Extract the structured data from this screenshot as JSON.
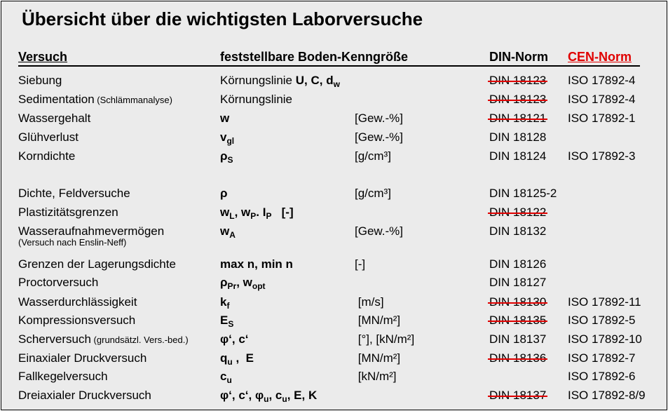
{
  "title": "Übersicht über die wichtigsten Laborversuche",
  "headers": {
    "versuch": "Versuch",
    "kenngroesse": "feststellbare  Boden-Kenngröße",
    "din": "DIN-Norm",
    "cen": "CEN-Norm"
  },
  "colors": {
    "cen_header": "#e00000",
    "strike": "#e00000",
    "background": "#ebebeb"
  },
  "rows": [
    {
      "versuch": "Siebung",
      "param": [
        [
          "Körnungslinie ",
          ""
        ],
        [
          "U, C, d",
          "b"
        ],
        [
          "w",
          "bs"
        ]
      ],
      "unit": "",
      "din": "DIN 18123",
      "din_struck": true,
      "iso": "ISO 17892-4"
    },
    {
      "versuch": "Sedimentation",
      "note": " (Schlämmanalyse)",
      "param": [
        [
          "Körnungslinie",
          ""
        ]
      ],
      "unit": "",
      "din": "DIN 18123",
      "din_struck": true,
      "iso": "ISO 17892-4"
    },
    {
      "versuch": "Wassergehalt",
      "param": [
        [
          "w",
          "b"
        ]
      ],
      "unit": "[Gew.-%]",
      "din": "DIN 18121",
      "din_struck": true,
      "iso": "ISO 17892-1"
    },
    {
      "versuch": "Glühverlust",
      "param": [
        [
          "v",
          "b"
        ],
        [
          "gl",
          "bs"
        ]
      ],
      "unit": "[Gew.-%]",
      "din": "DIN 18128",
      "din_struck": false,
      "iso": ""
    },
    {
      "versuch": "Korndichte",
      "param": [
        [
          "ρ",
          "b"
        ],
        [
          "S",
          "bs"
        ]
      ],
      "unit": "[g/cm³]",
      "din": "DIN 18124",
      "din_struck": false,
      "iso": "ISO 17892-3"
    },
    {
      "versuch": "Dichte, Feldversuche",
      "param": [
        [
          "ρ",
          "b"
        ]
      ],
      "unit": "[g/cm³]",
      "din": "DIN 18125-2",
      "din_struck": false,
      "iso": ""
    },
    {
      "versuch": "Plastizitätsgrenzen",
      "param": [
        [
          "w",
          "b"
        ],
        [
          "L",
          "bs"
        ],
        [
          ", w",
          "b"
        ],
        [
          "P",
          "bs"
        ],
        [
          ". I",
          "b"
        ],
        [
          "P",
          "bs"
        ],
        [
          "   [-]",
          "b"
        ]
      ],
      "unit": "",
      "din": "DIN 18122",
      "din_struck": true,
      "iso": ""
    },
    {
      "versuch": "Wasseraufnahmevermögen",
      "subnote": "(Versuch nach Enslin-Neff)",
      "param": [
        [
          "w",
          "b"
        ],
        [
          "A",
          "bs"
        ]
      ],
      "unit": "[Gew.-%]",
      "din": "DIN 18132",
      "din_struck": false,
      "iso": ""
    },
    {
      "versuch": "Grenzen der Lagerungsdichte",
      "param": [
        [
          "max n, min n",
          "b"
        ]
      ],
      "unit": "[-]",
      "din": "DIN 18126",
      "din_struck": false,
      "iso": ""
    },
    {
      "versuch": "Proctorversuch",
      "param": [
        [
          "ρ",
          "b"
        ],
        [
          "Pr",
          "bs"
        ],
        [
          ", w",
          "b"
        ],
        [
          "opt",
          "bs"
        ]
      ],
      "unit": "",
      "din": "DIN 18127",
      "din_struck": false,
      "iso": ""
    },
    {
      "versuch": "Wasserdurchlässigkeit",
      "param": [
        [
          "k",
          "b"
        ],
        [
          "f",
          "bs"
        ]
      ],
      "unit": " [m/s]",
      "din": "DIN 18130",
      "din_struck": true,
      "iso": "ISO 17892-11"
    },
    {
      "versuch": "Kompressionsversuch",
      "param": [
        [
          "E",
          "b"
        ],
        [
          "S",
          "bs"
        ]
      ],
      "unit": " [MN/m²]",
      "din": "DIN 18135",
      "din_struck": true,
      "iso": "ISO 17892-5"
    },
    {
      "versuch": "Scherversuch",
      "note": " (grundsätzl. Vers.-bed.)",
      "param": [
        [
          "φ‘, c‘",
          "b"
        ]
      ],
      "unit": " [°], [kN/m²]",
      "din": "DIN 18137",
      "din_struck": false,
      "iso": "ISO 17892-10"
    },
    {
      "versuch": "Einaxialer Druckversuch",
      "param": [
        [
          "q",
          "b"
        ],
        [
          "u",
          "bs"
        ],
        [
          " ,  E",
          "b"
        ]
      ],
      "unit": " [MN/m²]",
      "din": "DIN 18136",
      "din_struck": true,
      "iso": "ISO 17892-7"
    },
    {
      "versuch": "Fallkegelversuch",
      "param": [
        [
          "c",
          "b"
        ],
        [
          "u",
          "bs"
        ]
      ],
      "unit": " [kN/m²]",
      "din": "",
      "din_struck": false,
      "iso": "ISO 17892-6"
    },
    {
      "versuch": "Dreiaxialer Druckversuch",
      "param": [
        [
          "φ‘, c‘, φ",
          "b"
        ],
        [
          "u",
          "bs"
        ],
        [
          ", c",
          "b"
        ],
        [
          "u",
          "bs"
        ],
        [
          ", E, K",
          "b"
        ]
      ],
      "unit": "",
      "din": "DIN 18137",
      "din_struck": true,
      "iso": "ISO 17892-8/9"
    }
  ]
}
